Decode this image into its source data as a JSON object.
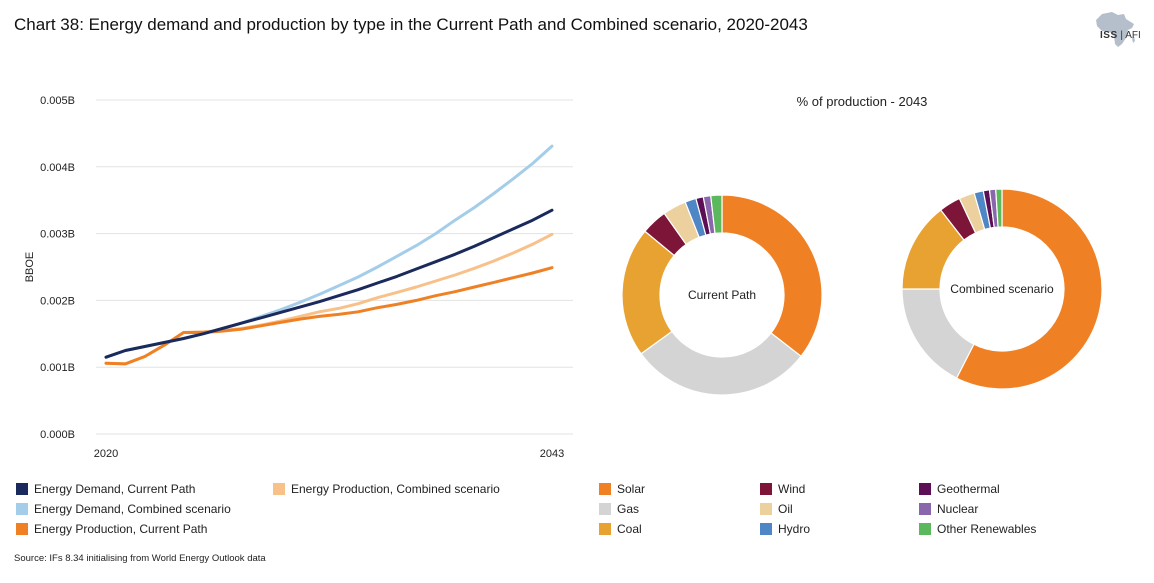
{
  "title": "Chart 38: Energy demand and production by type in the Current Path and Combined scenario, 2020-2043",
  "logo": {
    "primary": "ISS",
    "secondary": "AFI"
  },
  "source": "Source: IFs 8.34 initialising from World Energy Outlook data",
  "chart_data": [
    {
      "type": "line",
      "title": "",
      "xlabel": "",
      "ylabel": "BBOE",
      "x": [
        2020,
        2021,
        2022,
        2023,
        2024,
        2025,
        2026,
        2027,
        2028,
        2029,
        2030,
        2031,
        2032,
        2033,
        2034,
        2035,
        2036,
        2037,
        2038,
        2039,
        2040,
        2041,
        2042,
        2043
      ],
      "x_tick_labels": [
        {
          "x": 2020,
          "label": "2020"
        },
        {
          "x": 2043,
          "label": "2043"
        }
      ],
      "ylim": [
        0,
        0.005
      ],
      "y_ticks": [
        {
          "value": 0,
          "label": "0.000B"
        },
        {
          "value": 0.001,
          "label": "0.001B"
        },
        {
          "value": 0.002,
          "label": "0.002B"
        },
        {
          "value": 0.003,
          "label": "0.003B"
        },
        {
          "value": 0.004,
          "label": "0.004B"
        },
        {
          "value": 0.005,
          "label": "0.005B"
        }
      ],
      "series": [
        {
          "name": "Energy Demand, Current Path",
          "color": "#1b2a5c",
          "values": [
            0.00115,
            0.00125,
            0.00131,
            0.00137,
            0.00143,
            0.0015,
            0.00158,
            0.00166,
            0.00174,
            0.00182,
            0.0019,
            0.00198,
            0.00207,
            0.00216,
            0.00226,
            0.00236,
            0.00247,
            0.00258,
            0.00269,
            0.00281,
            0.00294,
            0.00307,
            0.0032,
            0.00335
          ]
        },
        {
          "name": "Energy Demand, Combined scenario",
          "color": "#a4cde9",
          "values": [
            0.00115,
            0.00125,
            0.00131,
            0.00137,
            0.00143,
            0.0015,
            0.00158,
            0.00166,
            0.00176,
            0.00186,
            0.00197,
            0.00209,
            0.00222,
            0.00235,
            0.0025,
            0.00266,
            0.00282,
            0.003,
            0.0032,
            0.00339,
            0.0036,
            0.00382,
            0.00405,
            0.00431
          ]
        },
        {
          "name": "Energy Production, Combined scenario",
          "color": "#f8c18a",
          "values": [
            0.00106,
            0.00105,
            0.00116,
            0.00133,
            0.00152,
            0.00153,
            0.00155,
            0.00158,
            0.00163,
            0.00169,
            0.00176,
            0.00183,
            0.00188,
            0.00195,
            0.00204,
            0.00212,
            0.0022,
            0.00229,
            0.00238,
            0.00248,
            0.00259,
            0.00271,
            0.00284,
            0.00299
          ]
        },
        {
          "name": "Energy Production, Current Path",
          "color": "#f08024",
          "values": [
            0.00106,
            0.00105,
            0.00116,
            0.00133,
            0.00152,
            0.00152,
            0.00154,
            0.00157,
            0.00162,
            0.00167,
            0.00172,
            0.00176,
            0.00179,
            0.00183,
            0.00189,
            0.00194,
            0.002,
            0.00207,
            0.00213,
            0.0022,
            0.00227,
            0.00234,
            0.00241,
            0.00249
          ]
        }
      ]
    },
    {
      "type": "pie",
      "title": "% of production - 2043",
      "donuts": [
        {
          "label": "Current Path",
          "slices": [
            {
              "name": "Solar",
              "value": 35.5,
              "color": "#f08024"
            },
            {
              "name": "Gas",
              "value": 29.5,
              "color": "#d4d4d4"
            },
            {
              "name": "Coal",
              "value": 21,
              "color": "#e8a232"
            },
            {
              "name": "Wind",
              "value": 4.2,
              "color": "#7c1538"
            },
            {
              "name": "Oil",
              "value": 3.8,
              "color": "#ecd09e"
            },
            {
              "name": "Hydro",
              "value": 1.8,
              "color": "#4f86c5"
            },
            {
              "name": "Geothermal",
              "value": 1.2,
              "color": "#5c0f55"
            },
            {
              "name": "Nuclear",
              "value": 1.2,
              "color": "#8a66ad"
            },
            {
              "name": "Other Renewables",
              "value": 1.8,
              "color": "#5cb85c"
            }
          ]
        },
        {
          "label": "Combined scenario",
          "slices": [
            {
              "name": "Solar",
              "value": 57.5,
              "color": "#f08024"
            },
            {
              "name": "Gas",
              "value": 17.5,
              "color": "#d4d4d4"
            },
            {
              "name": "Coal",
              "value": 14.5,
              "color": "#e8a232"
            },
            {
              "name": "Wind",
              "value": 3.5,
              "color": "#7c1538"
            },
            {
              "name": "Oil",
              "value": 2.5,
              "color": "#ecd09e"
            },
            {
              "name": "Hydro",
              "value": 1.5,
              "color": "#4f86c5"
            },
            {
              "name": "Geothermal",
              "value": 1.0,
              "color": "#5c0f55"
            },
            {
              "name": "Nuclear",
              "value": 1.0,
              "color": "#8a66ad"
            },
            {
              "name": "Other Renewables",
              "value": 1.0,
              "color": "#5cb85c"
            }
          ]
        }
      ]
    }
  ],
  "legend_line": [
    {
      "label": "Energy Demand, Current Path",
      "color": "#1b2a5c"
    },
    {
      "label": "Energy Production, Combined scenario",
      "color": "#f8c18a"
    },
    {
      "label": "Energy Demand, Combined scenario",
      "color": "#a4cde9"
    },
    {
      "label": "Energy Production, Current Path",
      "color": "#f08024"
    }
  ],
  "legend_pie": [
    {
      "label": "Solar",
      "color": "#f08024"
    },
    {
      "label": "Wind",
      "color": "#7c1538"
    },
    {
      "label": "Geothermal",
      "color": "#5c0f55"
    },
    {
      "label": "Gas",
      "color": "#d4d4d4"
    },
    {
      "label": "Oil",
      "color": "#ecd09e"
    },
    {
      "label": "Nuclear",
      "color": "#8a66ad"
    },
    {
      "label": "Coal",
      "color": "#e8a232"
    },
    {
      "label": "Hydro",
      "color": "#4f86c5"
    },
    {
      "label": "Other Renewables",
      "color": "#5cb85c"
    }
  ]
}
